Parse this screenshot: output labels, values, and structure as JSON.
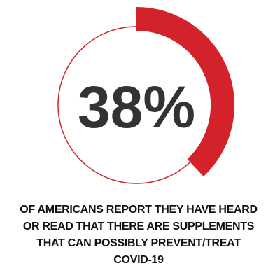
{
  "chart_data": {
    "type": "donut",
    "values": [
      38
    ],
    "value_labels": [
      "38%"
    ],
    "color": "#d3222a",
    "caption": [
      "OF AMERICANS REPORT THEY HAVE HEARD",
      "OR READ THAT THERE ARE SUPPLEMENTS",
      "THAT CAN POSSIBLY PREVENT/TREAT",
      "COVID-19"
    ]
  }
}
